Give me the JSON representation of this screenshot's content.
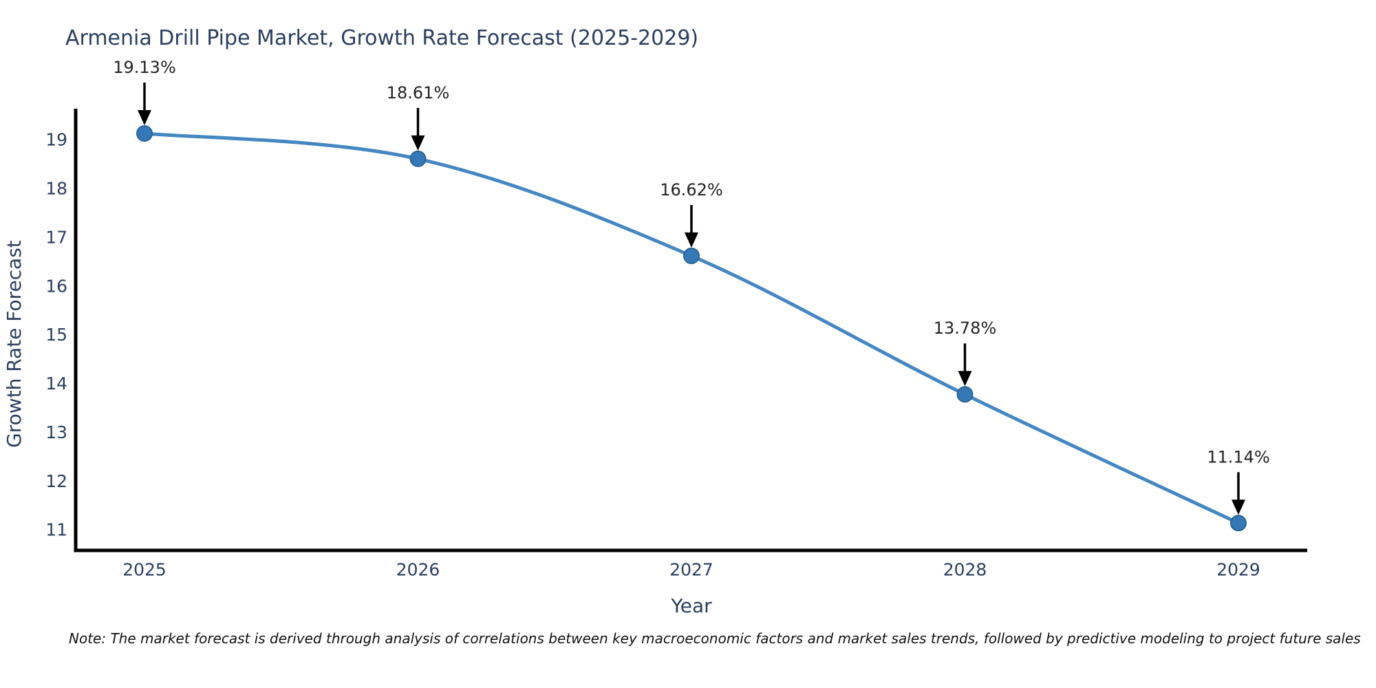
{
  "chart_data": {
    "type": "line",
    "title": "Armenia Drill Pipe Market, Growth Rate Forecast (2025-2029)",
    "xlabel": "Year",
    "ylabel": "Growth Rate Forecast",
    "categories": [
      "2025",
      "2026",
      "2027",
      "2028",
      "2029"
    ],
    "values": [
      19.13,
      18.61,
      16.62,
      13.78,
      11.14
    ],
    "annotations": [
      "19.13%",
      "18.61%",
      "16.62%",
      "13.78%",
      "11.14%"
    ],
    "yticks": [
      11,
      12,
      13,
      14,
      15,
      16,
      17,
      18,
      19
    ],
    "ylim": [
      10.58,
      19.61
    ],
    "grid": false,
    "legend": "none",
    "line_shape": "spline",
    "colors": {
      "line": "#4587c1",
      "marker": "#3578b7",
      "marker_edge": "#2b6391",
      "axis": "#000000",
      "tick_text": "#2a3f5f",
      "axis_title_text": "#2a3f5f",
      "annotation_text": "#222222",
      "arrow": "#000000"
    }
  },
  "note": "Note: The market forecast is derived through analysis of correlations between key macroeconomic factors and market sales trends, followed by predictive modeling to project future sales"
}
